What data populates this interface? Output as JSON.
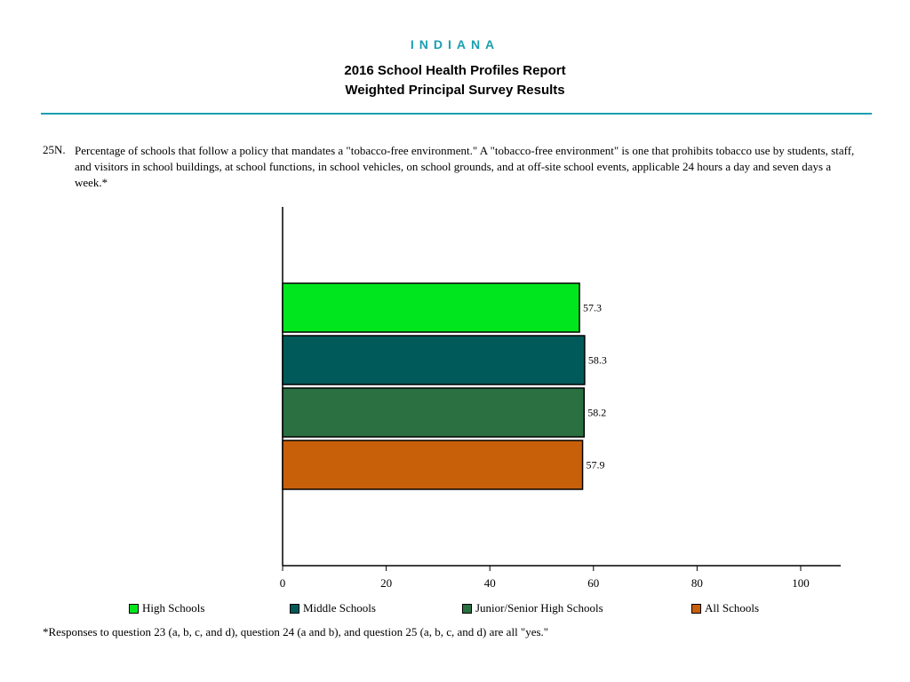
{
  "header": {
    "state": "INDIANA",
    "title_line1": "2016 School Health Profiles Report",
    "title_line2": "Weighted Principal Survey Results"
  },
  "question": {
    "number": "25N.",
    "text": "Percentage of schools that follow a policy that mandates a \"tobacco-free environment.\"  A \"tobacco-free environment\" is one that prohibits tobacco use by students, staff, and visitors in school buildings, at school functions, in school vehicles, on school grounds, and at off-site school events, applicable 24 hours a day and seven days a week.*"
  },
  "footnote": "*Responses to question 23 (a, b, c, and d), question 24 (a and b), and question 25 (a, b, c, and d) are all \"yes.\"",
  "chart_data": {
    "type": "bar",
    "orientation": "horizontal",
    "categories": [
      "High Schools",
      "Middle Schools",
      "Junior/Senior High Schools",
      "All Schools"
    ],
    "values": [
      57.3,
      58.3,
      58.2,
      57.9
    ],
    "value_labels": [
      "57.3",
      "58.3",
      "58.2",
      "57.9"
    ],
    "colors": [
      "#00e61e",
      "#005a5a",
      "#2a7040",
      "#c8600a"
    ],
    "xlim": [
      0,
      100
    ],
    "xticks": [
      "0",
      "20",
      "40",
      "60",
      "80",
      "100"
    ],
    "legend_position": "bottom",
    "grid": false
  }
}
